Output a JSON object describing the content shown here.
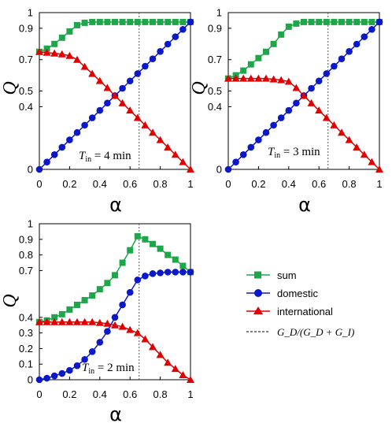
{
  "colors": {
    "sum": "#1fa64a",
    "domestic": "#0b18c8",
    "international": "#e00000",
    "guide": "#555555"
  },
  "legend": {
    "sum": "sum",
    "domestic": "domestic",
    "international": "international",
    "guide_line": "G_D/(G_D + G_I)"
  },
  "chart_data": [
    {
      "type": "line",
      "annotation": {
        "var": "T",
        "sub": "in",
        "text": " = 4 min"
      },
      "xlabel": "α",
      "ylabel": "Q",
      "xlim": [
        0,
        1
      ],
      "ylim": [
        0,
        1
      ],
      "xticks": [
        "0",
        "0.2",
        "0.4",
        "0.6",
        "0.8",
        "1"
      ],
      "yticks": [
        "0",
        "0.4",
        "0.5",
        "0.7",
        "0.9",
        "1"
      ],
      "ytick_values": [
        0,
        0.4,
        0.5,
        0.7,
        0.9,
        1
      ],
      "vline_x": 0.66,
      "grid": false,
      "x": [
        0,
        0.05,
        0.1,
        0.15,
        0.2,
        0.25,
        0.3,
        0.35,
        0.4,
        0.45,
        0.5,
        0.55,
        0.6,
        0.65,
        0.7,
        0.75,
        0.8,
        0.85,
        0.9,
        0.95,
        1
      ],
      "series": [
        {
          "name": "sum",
          "marker": "square",
          "values": [
            0.75,
            0.77,
            0.8,
            0.84,
            0.88,
            0.92,
            0.935,
            0.94,
            0.94,
            0.94,
            0.94,
            0.94,
            0.94,
            0.94,
            0.94,
            0.94,
            0.94,
            0.94,
            0.94,
            0.94,
            0.94
          ]
        },
        {
          "name": "domestic",
          "marker": "circle",
          "values": [
            0.0,
            0.047,
            0.094,
            0.141,
            0.188,
            0.235,
            0.282,
            0.329,
            0.376,
            0.423,
            0.47,
            0.517,
            0.564,
            0.611,
            0.658,
            0.705,
            0.752,
            0.799,
            0.846,
            0.893,
            0.94
          ]
        },
        {
          "name": "international",
          "marker": "triangle",
          "values": [
            0.75,
            0.745,
            0.74,
            0.735,
            0.725,
            0.7,
            0.655,
            0.61,
            0.565,
            0.52,
            0.47,
            0.423,
            0.376,
            0.329,
            0.282,
            0.235,
            0.188,
            0.141,
            0.094,
            0.047,
            0.0
          ]
        }
      ]
    },
    {
      "type": "line",
      "annotation": {
        "var": "T",
        "sub": "in",
        "text": " = 3 min"
      },
      "xlabel": "α",
      "ylabel": "Q",
      "xlim": [
        0,
        1
      ],
      "ylim": [
        0,
        1
      ],
      "xticks": [
        "0",
        "0.2",
        "0.4",
        "0.6",
        "0.8",
        "1"
      ],
      "yticks": [
        "0",
        "0.4",
        "0.5",
        "0.7",
        "0.9",
        "1"
      ],
      "ytick_values": [
        0,
        0.4,
        0.5,
        0.7,
        0.9,
        1
      ],
      "vline_x": 0.66,
      "grid": false,
      "x": [
        0,
        0.05,
        0.1,
        0.15,
        0.2,
        0.25,
        0.3,
        0.35,
        0.4,
        0.45,
        0.5,
        0.55,
        0.6,
        0.65,
        0.7,
        0.75,
        0.8,
        0.85,
        0.9,
        0.95,
        1
      ],
      "series": [
        {
          "name": "sum",
          "marker": "square",
          "values": [
            0.58,
            0.6,
            0.63,
            0.67,
            0.71,
            0.75,
            0.8,
            0.86,
            0.91,
            0.93,
            0.94,
            0.94,
            0.94,
            0.94,
            0.94,
            0.94,
            0.94,
            0.94,
            0.94,
            0.94,
            0.94
          ]
        },
        {
          "name": "domestic",
          "marker": "circle",
          "values": [
            0.0,
            0.047,
            0.094,
            0.141,
            0.188,
            0.235,
            0.282,
            0.329,
            0.376,
            0.423,
            0.47,
            0.517,
            0.564,
            0.611,
            0.658,
            0.705,
            0.752,
            0.799,
            0.846,
            0.893,
            0.94
          ]
        },
        {
          "name": "international",
          "marker": "triangle",
          "values": [
            0.58,
            0.58,
            0.58,
            0.58,
            0.58,
            0.58,
            0.575,
            0.57,
            0.56,
            0.52,
            0.47,
            0.423,
            0.376,
            0.329,
            0.282,
            0.235,
            0.188,
            0.141,
            0.094,
            0.047,
            0.0
          ]
        }
      ]
    },
    {
      "type": "line",
      "annotation": {
        "var": "T",
        "sub": "in",
        "text": " = 2 min"
      },
      "xlabel": "α",
      "ylabel": "Q",
      "xlim": [
        0,
        1
      ],
      "ylim": [
        0,
        1
      ],
      "xticks": [
        "0",
        "0.2",
        "0.4",
        "0.6",
        "0.8",
        "1"
      ],
      "yticks": [
        "0",
        "0.1",
        "0.2",
        "0.3",
        "0.4",
        "0.7",
        "0.8",
        "0.9",
        "1"
      ],
      "ytick_values": [
        0,
        0.1,
        0.2,
        0.3,
        0.4,
        0.7,
        0.8,
        0.9,
        1
      ],
      "vline_x": 0.66,
      "grid": false,
      "x": [
        0,
        0.05,
        0.1,
        0.15,
        0.2,
        0.25,
        0.3,
        0.35,
        0.4,
        0.45,
        0.5,
        0.55,
        0.6,
        0.65,
        0.7,
        0.75,
        0.8,
        0.85,
        0.9,
        0.95,
        1
      ],
      "series": [
        {
          "name": "sum",
          "marker": "square",
          "values": [
            0.37,
            0.38,
            0.4,
            0.42,
            0.45,
            0.48,
            0.51,
            0.54,
            0.58,
            0.62,
            0.67,
            0.75,
            0.83,
            0.92,
            0.9,
            0.87,
            0.84,
            0.8,
            0.77,
            0.73,
            0.69
          ]
        },
        {
          "name": "domestic",
          "marker": "circle",
          "values": [
            0.0,
            0.01,
            0.025,
            0.04,
            0.06,
            0.09,
            0.13,
            0.18,
            0.24,
            0.31,
            0.4,
            0.48,
            0.56,
            0.64,
            0.665,
            0.68,
            0.685,
            0.69,
            0.69,
            0.69,
            0.69
          ]
        },
        {
          "name": "international",
          "marker": "triangle",
          "values": [
            0.37,
            0.37,
            0.37,
            0.37,
            0.37,
            0.37,
            0.37,
            0.37,
            0.365,
            0.36,
            0.35,
            0.34,
            0.32,
            0.3,
            0.26,
            0.21,
            0.16,
            0.11,
            0.07,
            0.03,
            0.0
          ]
        }
      ]
    }
  ]
}
